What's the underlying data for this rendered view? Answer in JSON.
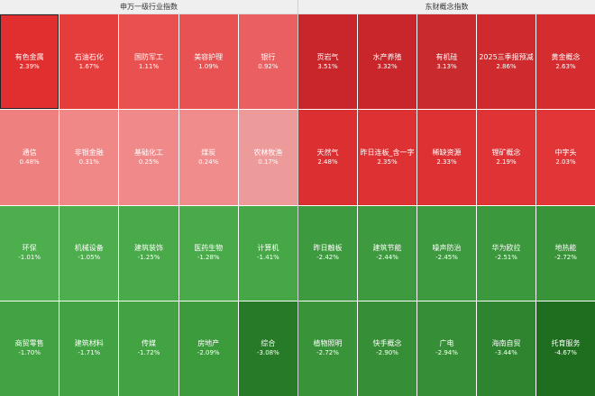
{
  "left_panel": {
    "title": "申万一级行业指数",
    "tiles": [
      {
        "name": "有色金属",
        "change": "2.39%",
        "color": "#e12f2f"
      },
      {
        "name": "石油石化",
        "change": "1.67%",
        "color": "#e53c3c"
      },
      {
        "name": "国防军工",
        "change": "1.11%",
        "color": "#e95050"
      },
      {
        "name": "美容护理",
        "change": "1.09%",
        "color": "#e95252"
      },
      {
        "name": "银行",
        "change": "0.92%",
        "color": "#ea6060"
      },
      {
        "name": "通信",
        "change": "0.48%",
        "color": "#ef8080"
      },
      {
        "name": "非银金融",
        "change": "0.31%",
        "color": "#f08888"
      },
      {
        "name": "基础化工",
        "change": "0.25%",
        "color": "#f08a8a"
      },
      {
        "name": "煤炭",
        "change": "0.24%",
        "color": "#f08c8c"
      },
      {
        "name": "农林牧渔",
        "change": "0.17%",
        "color": "#ed9a9a"
      },
      {
        "name": "环保",
        "change": "-1.01%",
        "color": "#4cae4c"
      },
      {
        "name": "机械设备",
        "change": "-1.05%",
        "color": "#4cae4c"
      },
      {
        "name": "建筑装饰",
        "change": "-1.25%",
        "color": "#48aa48"
      },
      {
        "name": "医药生物",
        "change": "-1.28%",
        "color": "#48aa48"
      },
      {
        "name": "计算机",
        "change": "-1.41%",
        "color": "#45a745"
      },
      {
        "name": "商贸零售",
        "change": "-1.70%",
        "color": "#42a342"
      },
      {
        "name": "建筑材料",
        "change": "-1.71%",
        "color": "#42a342"
      },
      {
        "name": "传媒",
        "change": "-1.72%",
        "color": "#42a342"
      },
      {
        "name": "房地产",
        "change": "-2.09%",
        "color": "#3c9c3c"
      },
      {
        "name": "综合",
        "change": "-3.08%",
        "color": "#277a27"
      }
    ]
  },
  "right_panel": {
    "title": "东财概念指数",
    "tiles": [
      {
        "name": "页岩气",
        "change": "3.51%",
        "color": "#c8262a"
      },
      {
        "name": "水产养殖",
        "change": "3.32%",
        "color": "#c8262a"
      },
      {
        "name": "有机硅",
        "change": "3.13%",
        "color": "#c92a2d"
      },
      {
        "name": "2025三季报预减",
        "change": "2.86%",
        "color": "#cf2b2e"
      },
      {
        "name": "黄金概念",
        "change": "2.63%",
        "color": "#d52c2f"
      },
      {
        "name": "天然气",
        "change": "2.48%",
        "color": "#dc2f31"
      },
      {
        "name": "昨日连板_含一字",
        "change": "2.35%",
        "color": "#de3133"
      },
      {
        "name": "稀缺资源",
        "change": "2.33%",
        "color": "#de3133"
      },
      {
        "name": "锂矿概念",
        "change": "2.19%",
        "color": "#e03335"
      },
      {
        "name": "中字头",
        "change": "2.03%",
        "color": "#e23537"
      },
      {
        "name": "昨日触板",
        "change": "-2.42%",
        "color": "#3e9a3e"
      },
      {
        "name": "建筑节能",
        "change": "-2.44%",
        "color": "#3e9a3e"
      },
      {
        "name": "噪声防治",
        "change": "-2.45%",
        "color": "#3e9a3e"
      },
      {
        "name": "华为欧拉",
        "change": "-2.51%",
        "color": "#3c983c"
      },
      {
        "name": "地热能",
        "change": "-2.72%",
        "color": "#399339"
      },
      {
        "name": "植物照明",
        "change": "-2.72%",
        "color": "#399339"
      },
      {
        "name": "快手概念",
        "change": "-2.90%",
        "color": "#368f36"
      },
      {
        "name": "广电",
        "change": "-2.94%",
        "color": "#368f36"
      },
      {
        "name": "海南自贸",
        "change": "-3.44%",
        "color": "#2f852f"
      },
      {
        "name": "托育服务",
        "change": "-4.67%",
        "color": "#1f6e1f"
      }
    ]
  }
}
